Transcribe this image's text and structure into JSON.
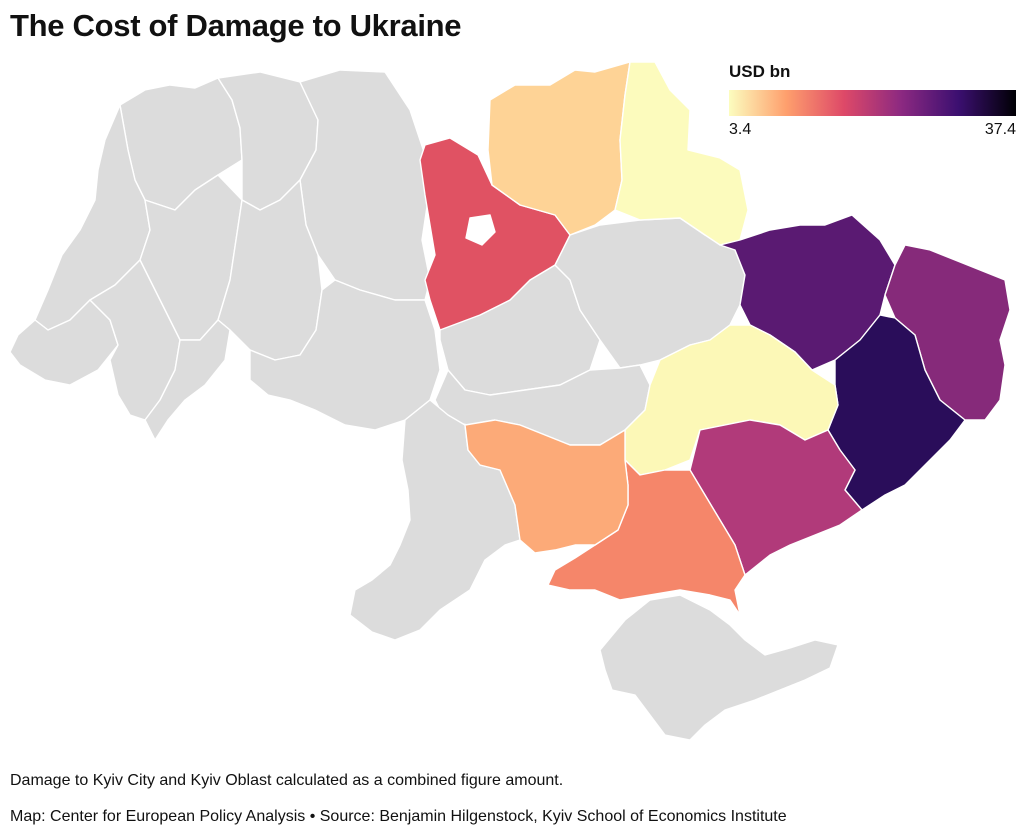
{
  "title": "The Cost of Damage to Ukraine",
  "legend": {
    "title": "USD bn",
    "min_label": "3.4",
    "max_label": "37.4",
    "scale": [
      3.4,
      37.4
    ],
    "gradient": [
      "#fcfdbf",
      "#fe9f6d",
      "#de4968",
      "#8c2981",
      "#3b0f70",
      "#000004"
    ]
  },
  "colors": {
    "no_data": "#dcdcdc",
    "border": "#ffffff"
  },
  "footnote": "Damage to Kyiv City and Kyiv Oblast calculated as a combined figure amount.",
  "credit": "Map: Center for European Policy Analysis • Source: Benjamin Hilgenstock, Kyiv School of Economics Institute",
  "regions_highlighted": [
    {
      "id": "kyiv",
      "color": "#e05263"
    },
    {
      "id": "chernihiv",
      "color": "#fed396"
    },
    {
      "id": "sumy",
      "color": "#fcfbbd"
    },
    {
      "id": "kharkiv",
      "color": "#5a1a72"
    },
    {
      "id": "luhansk",
      "color": "#862a7a"
    },
    {
      "id": "donetsk",
      "color": "#2a0d5a"
    },
    {
      "id": "dnipropetrovsk",
      "color": "#fcf8b7"
    },
    {
      "id": "zaporizhzhia",
      "color": "#b13a7a"
    },
    {
      "id": "kherson",
      "color": "#f5866a"
    },
    {
      "id": "mykolaiv",
      "color": "#fcaa78"
    }
  ]
}
